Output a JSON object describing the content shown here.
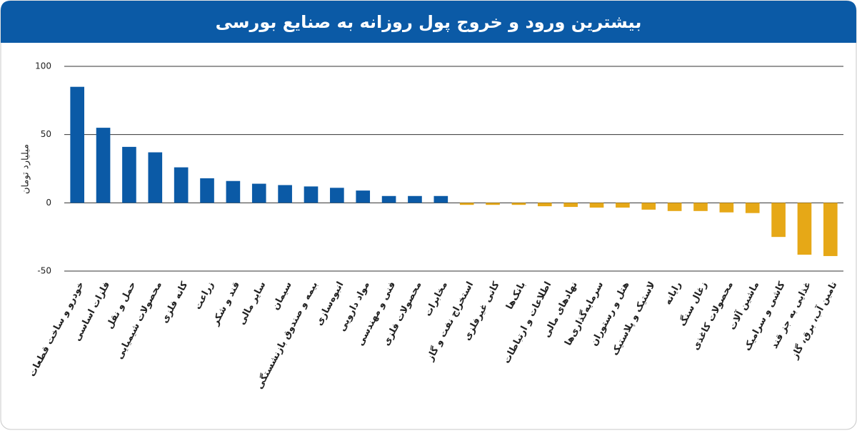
{
  "chart_data": {
    "type": "bar",
    "title": "بیشترین ورود و خروج پول روزانه به صنایع بورسی",
    "y_label": "میلیارد تومان",
    "categories": [
      "خودرو و ساخت قطعات",
      "فلزات اساسی",
      "حمل و نقل",
      "محصولات شیمیایی",
      "کانه فلزی",
      "زراعت",
      "قند و شکر",
      "سایر مالی",
      "سیمان",
      "بیمه و صندوق بازنشستگی",
      "انبوه‌سازی",
      "مواد دارویی",
      "فنی و مهندسی",
      "محصولات فلزی",
      "مخابرات",
      "استخراج نفت و گاز",
      "کانی غیرفلزی",
      "بانک‌ها",
      "اطلاعات و ارتباطات",
      "نهادهای مالی",
      "سرمایه‌گذاری‌ها",
      "هتل و رستوران",
      "لاستیک و پلاستیک",
      "رایانه",
      "زغال سنگ",
      "محصولات کاغذی",
      "ماشین آلات",
      "کاشی و سرامیک",
      "غذایی به جز قند",
      "تامین آب، برق، گاز"
    ],
    "values": [
      85,
      55,
      41,
      37,
      26,
      18,
      16,
      14,
      13,
      12,
      11,
      9,
      5,
      5,
      5,
      -1.5,
      -1.5,
      -1.5,
      -2.5,
      -3,
      -3.5,
      -3.5,
      -5,
      -6,
      -6,
      -7,
      -7.5,
      -25,
      -38,
      -39
    ],
    "positive_color": "#0b5aa6",
    "negative_color": "#e6a817",
    "ylim": [
      -50,
      100
    ],
    "yticks": [
      -50,
      0,
      50,
      100
    ],
    "grid": true
  }
}
